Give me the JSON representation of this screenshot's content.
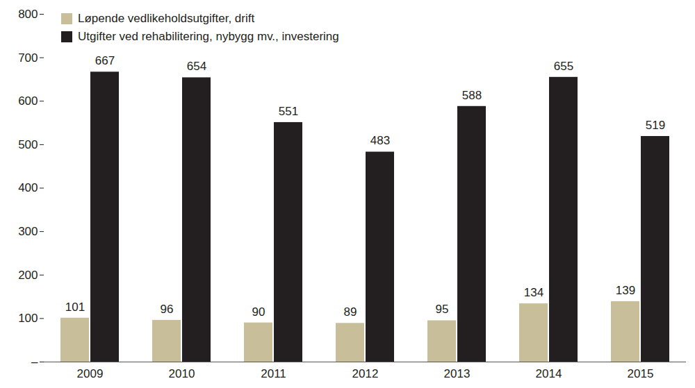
{
  "chart_data": {
    "type": "bar",
    "categories": [
      "2009",
      "2010",
      "2011",
      "2012",
      "2013",
      "2014",
      "2015"
    ],
    "series": [
      {
        "name": "Løpende vedlikeholdsutgifter, drift",
        "color": "#c8bf9a",
        "values": [
          101,
          96,
          90,
          89,
          95,
          134,
          139
        ]
      },
      {
        "name": "Utgifter ved rehabilitering, nybygg mv., investering",
        "color": "#231f20",
        "values": [
          667,
          654,
          551,
          483,
          588,
          655,
          519
        ]
      }
    ],
    "ylim": [
      0,
      800
    ],
    "yticks": [
      {
        "value": 0,
        "label": "–"
      },
      100,
      200,
      300,
      400,
      500,
      600,
      700,
      800
    ],
    "grid": false,
    "legend": "top-left",
    "data_labels": true
  }
}
